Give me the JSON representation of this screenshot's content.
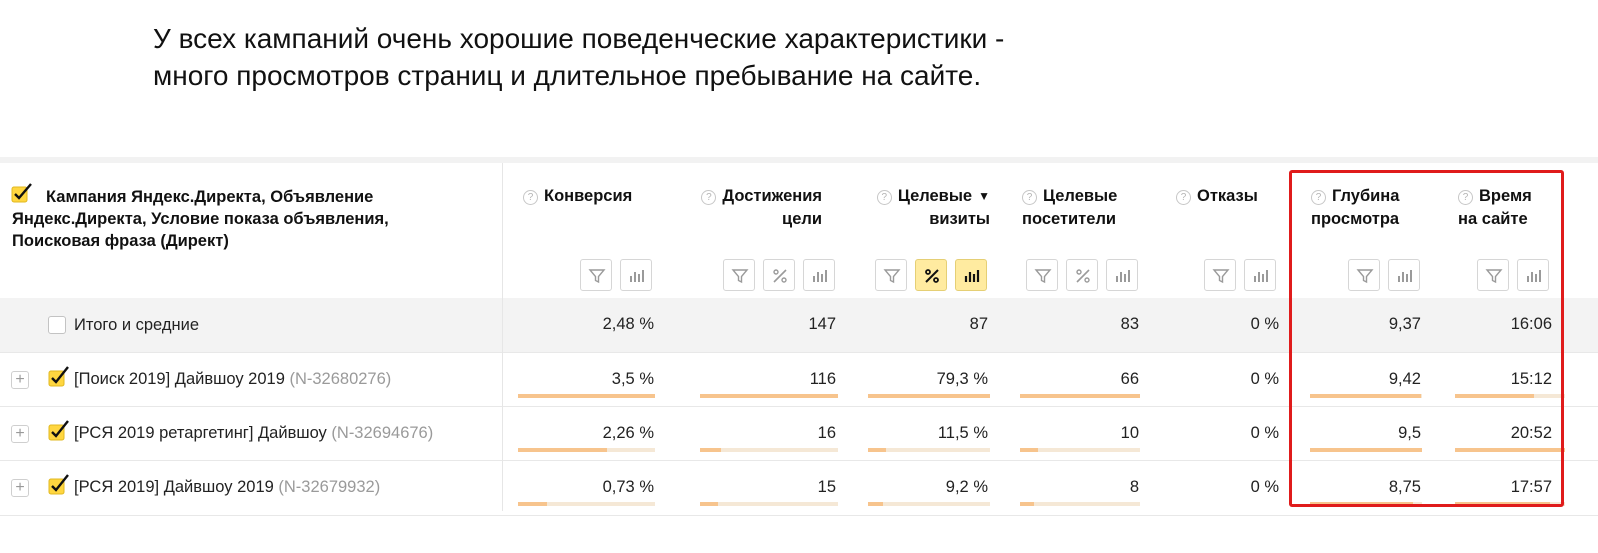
{
  "caption": {
    "line1": "У всех кампаний очень хорошие поведенческие характеристики -",
    "line2": "много просмотров страниц и длительное пребывание на сайте."
  },
  "dimension_header": "Кампания Яндекс.Директа, Объявление Яндекс.Директа, Условие показа объявления, Поисковая фраза (Директ)",
  "help_glyph": "?",
  "columns": [
    {
      "key": "conv",
      "line1": "Конверсия",
      "line2": ""
    },
    {
      "key": "goals",
      "line1": "Достижения",
      "line2": "цели"
    },
    {
      "key": "visits",
      "line1": "Целевые",
      "line2": "визиты",
      "sort_icon": "▼"
    },
    {
      "key": "visitors",
      "line1": "Целевые",
      "line2": "посетители"
    },
    {
      "key": "bounce",
      "line1": "Отказы",
      "line2": ""
    },
    {
      "key": "depth",
      "line1": "Глубина",
      "line2": "просмотра"
    },
    {
      "key": "time",
      "line1": "Время",
      "line2": "на сайте"
    }
  ],
  "totals": {
    "label": "Итого и средние",
    "values": [
      "2,48 %",
      "147",
      "87",
      "83",
      "0 %",
      "9,37",
      "16:06"
    ]
  },
  "rows": [
    {
      "name": "[Поиск 2019] Дайвшоу 2019",
      "id": "(N-32680276)",
      "values": [
        "3,5 %",
        "116",
        "79,3 %",
        "66",
        "0 %",
        "9,42",
        "15:12"
      ],
      "bar_fractions": [
        1.0,
        1.0,
        1.0,
        1.0,
        0,
        0.99,
        0.72
      ]
    },
    {
      "name": "[РСЯ 2019 ретаргетинг] Дайвшоу",
      "id": "(N-32694676)",
      "values": [
        "2,26 %",
        "16",
        "11,5 %",
        "10",
        "0 %",
        "9,5",
        "20:52"
      ],
      "bar_fractions": [
        0.65,
        0.15,
        0.15,
        0.15,
        0,
        1.0,
        1.0
      ]
    },
    {
      "name": "[РСЯ 2019] Дайвшоу 2019",
      "id": "(N-32679932)",
      "values": [
        "0,73 %",
        "15",
        "9,2 %",
        "8",
        "0 %",
        "8,75",
        "17:57"
      ],
      "bar_fractions": [
        0.21,
        0.13,
        0.12,
        0.12,
        0,
        0.92,
        0.86
      ]
    }
  ],
  "accent_colors": {
    "highlight_border": "#e01b1b",
    "bar_fill": "#f7c48d",
    "bar_track": "#f5e8d6",
    "checkbox": "#ffd640",
    "active_button": "#ffeba0"
  }
}
